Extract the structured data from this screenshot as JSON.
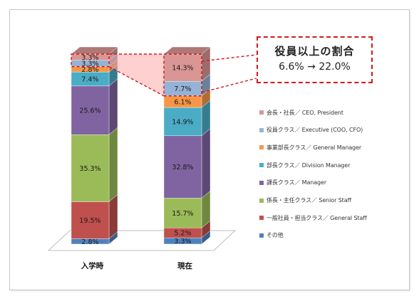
{
  "chart_data": {
    "type": "bar",
    "stacked": true,
    "categories": [
      "入学時",
      "現在"
    ],
    "series": [
      {
        "name": "その他",
        "color": "#4f81bd",
        "values": [
          2.8,
          3.3
        ]
      },
      {
        "name": "一般社員・担当クラス／ General Staff",
        "color": "#c0504d",
        "values": [
          19.5,
          5.2
        ]
      },
      {
        "name": "係長・主任クラス／ Senior Staff",
        "color": "#9bbb59",
        "values": [
          35.3,
          15.7
        ]
      },
      {
        "name": "課長クラス／ Manager",
        "color": "#8064a2",
        "values": [
          25.6,
          32.8
        ]
      },
      {
        "name": "部長クラス／ Division Manager",
        "color": "#4bacc6",
        "values": [
          7.4,
          14.9
        ]
      },
      {
        "name": "事業部長クラス／ General Manager",
        "color": "#f79646",
        "values": [
          2.8,
          6.1
        ]
      },
      {
        "name": "役員クラス／ Executive (COO, CFO)",
        "color": "#95b3d7",
        "values": [
          3.3,
          7.7
        ]
      },
      {
        "name": "会長・社長／ CEO, President",
        "color": "#d99694",
        "values": [
          3.3,
          14.3
        ]
      }
    ],
    "labels": [
      [
        "2.8%",
        "19.5%",
        "35.3%",
        "25.6%",
        "7.4%",
        "2.8%",
        "3.3%",
        "3.3%"
      ],
      [
        "3.3%",
        "5.2%",
        "15.7%",
        "32.8%",
        "14.9%",
        "6.1%",
        "7.7%",
        "14.3%"
      ]
    ],
    "legend_position": "right",
    "grid": false
  },
  "callout": {
    "title": "役員以上の割合",
    "text": "6.6% → 22.0%"
  },
  "highlight_color": "#ffaaaa",
  "callout_border_color": "#d21a1a"
}
